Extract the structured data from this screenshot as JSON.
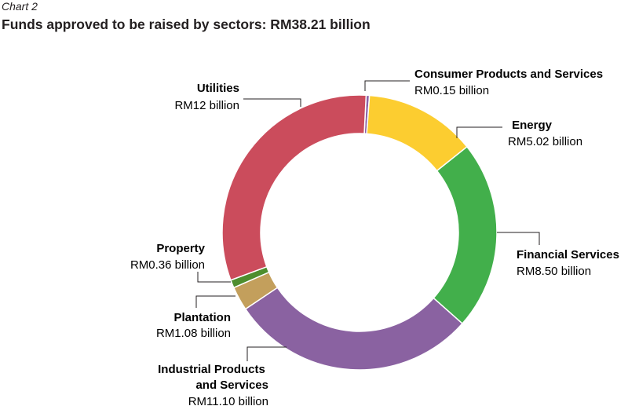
{
  "header": {
    "chart_label": "Chart 2",
    "title": "Funds approved to be raised by sectors: RM38.21 billion"
  },
  "chart_data": {
    "type": "pie",
    "title": "Funds approved to be raised by sectors: RM38.21 billion",
    "unit": "RM billion",
    "total": 38.21,
    "hole": "donut",
    "slices": [
      {
        "label": "Consumer Products and Services",
        "value": 0.15,
        "value_label": "RM0.15 billion",
        "color": "#8b63a8"
      },
      {
        "label": "Energy",
        "value": 5.02,
        "value_label": "RM5.02 billion",
        "color": "#fccd30"
      },
      {
        "label": "Financial Services",
        "value": 8.5,
        "value_label": "RM8.50 billion",
        "color": "#42af4b"
      },
      {
        "label": "Industrial Products and Services",
        "value": 11.1,
        "value_label": "RM11.10 billion",
        "color": "#8a62a1"
      },
      {
        "label": "Plantation",
        "value": 1.08,
        "value_label": "RM1.08 billion",
        "color": "#c39f5c"
      },
      {
        "label": "Property",
        "value": 0.36,
        "value_label": "RM0.36 billion",
        "color": "#4e8e2e"
      },
      {
        "label": "Utilities",
        "value": 12,
        "value_label": "RM12 billion",
        "color": "#cb4c5c"
      }
    ]
  }
}
